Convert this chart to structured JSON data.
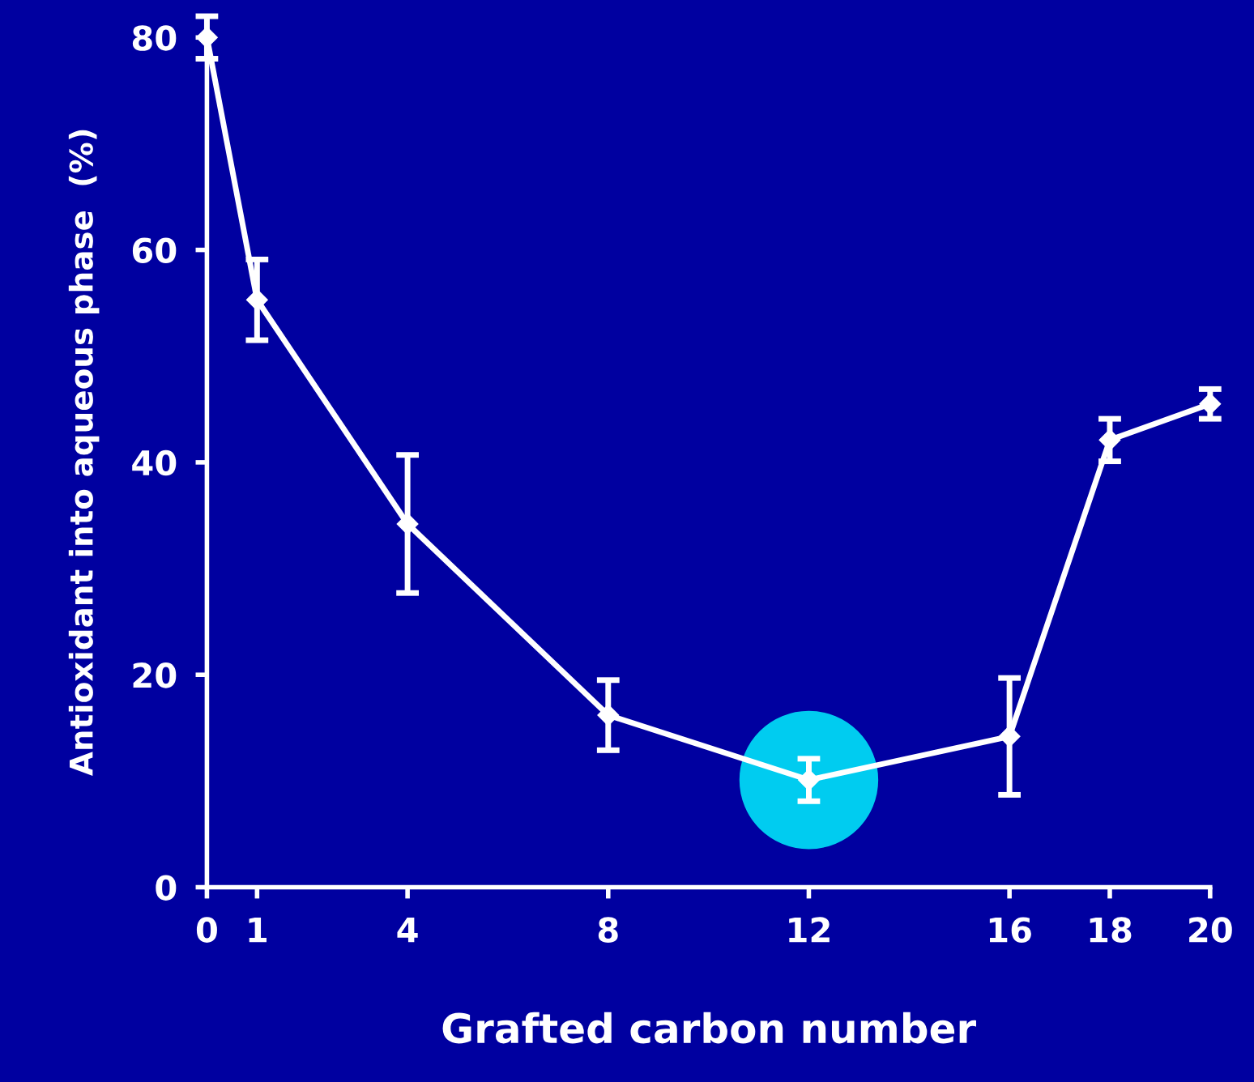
{
  "chart_data": {
    "type": "line",
    "xlabel": "Grafted carbon number",
    "ylabel": "Antioxidant into aqueous phase  (%)",
    "x": [
      0,
      1,
      4,
      8,
      12,
      16,
      18,
      20
    ],
    "series": [
      {
        "color": "#ffffff",
        "values": [
          80,
          55.3,
          34.2,
          16.2,
          10.1,
          14.2,
          42.1,
          45.5
        ],
        "errors": [
          2,
          3.8,
          6.5,
          3.3,
          2,
          5.5,
          2,
          1.4
        ]
      }
    ],
    "xlim": [
      0,
      20
    ],
    "xticks": [
      0,
      1,
      4,
      8,
      12,
      16,
      18,
      20
    ],
    "ylim": [
      0,
      82
    ],
    "yticks": [
      0,
      20,
      40,
      60,
      80
    ],
    "marker": "diamond",
    "line_style": "solid",
    "grid": false,
    "legend": false
  }
}
